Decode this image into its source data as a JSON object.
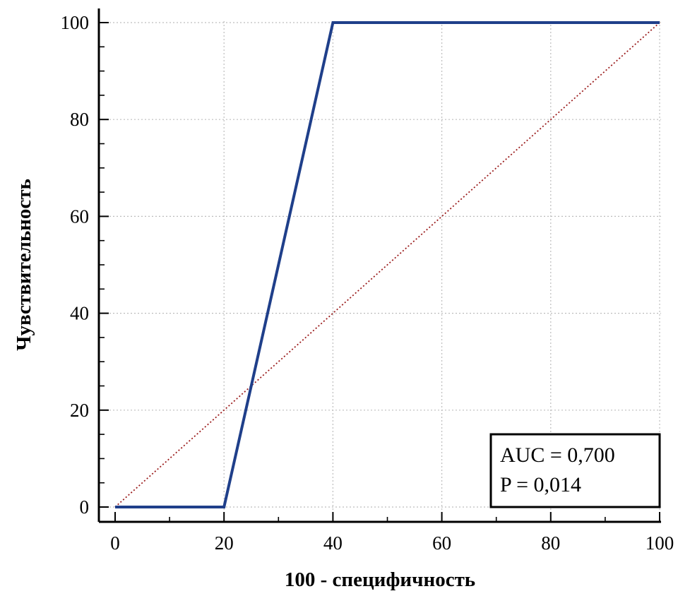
{
  "chart_data": {
    "type": "line",
    "xlabel": "100 - специфичность",
    "ylabel": "Чувствительность",
    "xlim": [
      0,
      100
    ],
    "ylim": [
      0,
      100
    ],
    "x_ticks": [
      "0",
      "20",
      "40",
      "60",
      "80",
      "100"
    ],
    "y_ticks": [
      "0",
      "20",
      "40",
      "60",
      "80",
      "100"
    ],
    "grid": true,
    "series": [
      {
        "role": "roc-curve",
        "color": "#1f3f8a",
        "style": "solid",
        "x": [
          0,
          20,
          40,
          100
        ],
        "y": [
          0,
          0,
          100,
          100
        ]
      },
      {
        "role": "reference-diagonal",
        "color": "#9b1c1c",
        "style": "dotted",
        "x": [
          0,
          100
        ],
        "y": [
          0,
          100
        ]
      }
    ],
    "annotation": {
      "lines": [
        "AUC = 0,700",
        "P = 0,014"
      ],
      "position": "bottom-right"
    }
  }
}
